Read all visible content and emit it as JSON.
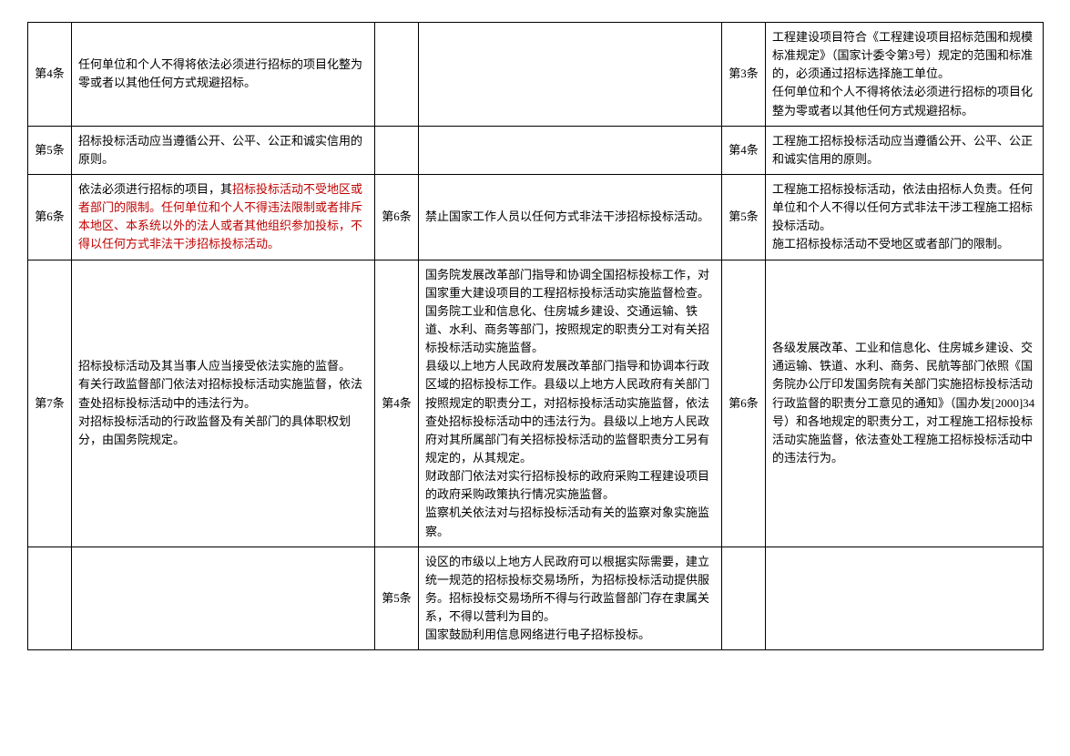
{
  "table": {
    "rows": [
      {
        "a_label": "第4条",
        "a_text": "任何单位和个人不得将依法必须进行招标的项目化整为零或者以其他任何方式规避招标。",
        "b_label": "",
        "b_text": "",
        "c_label": "第3条",
        "c_text": "工程建设项目符合《工程建设项目招标范围和规模标准规定》（国家计委令第3号）规定的范围和标准的，必须通过招标选择施工单位。\n任何单位和个人不得将依法必须进行招标的项目化整为零或者以其他任何方式规避招标。"
      },
      {
        "a_label": "第5条",
        "a_text": "招标投标活动应当遵循公开、公平、公正和诚实信用的原则。",
        "b_label": "",
        "b_text": "",
        "c_label": "第4条",
        "c_text": "工程施工招标投标活动应当遵循公开、公平、公正和诚实信用的原则。"
      },
      {
        "a_label": "第6条",
        "a_plain": "依法必须进行招标的项目，其",
        "a_hl1": "招标投标活动不受地区或者部门的限制。",
        "a_hl2": "任何单位和个人不得违法限制或者排斥本地区、本系统以外的法人或者其他组织参加投标，不得以任何方式非法干涉招标投标活动。",
        "b_label": "第6条",
        "b_text": "禁止国家工作人员以任何方式非法干涉招标投标活动。",
        "c_label": "第5条",
        "c_text": "工程施工招标投标活动，依法由招标人负责。任何单位和个人不得以任何方式非法干涉工程施工招标投标活动。\n施工招标投标活动不受地区或者部门的限制。"
      },
      {
        "a_label": "第7条",
        "a_text": "招标投标活动及其当事人应当接受依法实施的监督。\n有关行政监督部门依法对招标投标活动实施监督，依法查处招标投标活动中的违法行为。\n对招标投标活动的行政监督及有关部门的具体职权划分，由国务院规定。",
        "b_label": "第4条",
        "b_text": "国务院发展改革部门指导和协调全国招标投标工作，对国家重大建设项目的工程招标投标活动实施监督检查。国务院工业和信息化、住房城乡建设、交通运输、铁道、水利、商务等部门，按照规定的职责分工对有关招标投标活动实施监督。\n县级以上地方人民政府发展改革部门指导和协调本行政区域的招标投标工作。县级以上地方人民政府有关部门按照规定的职责分工，对招标投标活动实施监督，依法查处招标投标活动中的违法行为。县级以上地方人民政府对其所属部门有关招标投标活动的监督职责分工另有规定的，从其规定。\n财政部门依法对实行招标投标的政府采购工程建设项目的政府采购政策执行情况实施监督。\n监察机关依法对与招标投标活动有关的监察对象实施监察。",
        "c_label": "第6条",
        "c_text": "各级发展改革、工业和信息化、住房城乡建设、交通运输、铁道、水利、商务、民航等部门依照《国务院办公厅印发国务院有关部门实施招标投标活动行政监督的职责分工意见的通知》（国办发[2000]34号）和各地规定的职责分工，对工程施工招标投标活动实施监督，依法查处工程施工招标投标活动中的违法行为。"
      },
      {
        "a_label": "",
        "a_text": "",
        "b_label": "第5条",
        "b_text": "设区的市级以上地方人民政府可以根据实际需要，建立统一规范的招标投标交易场所，为招标投标活动提供服务。招标投标交易场所不得与行政监督部门存在隶属关系，不得以营利为目的。\n国家鼓励利用信息网络进行电子招标投标。",
        "c_label": "",
        "c_text": ""
      }
    ]
  }
}
